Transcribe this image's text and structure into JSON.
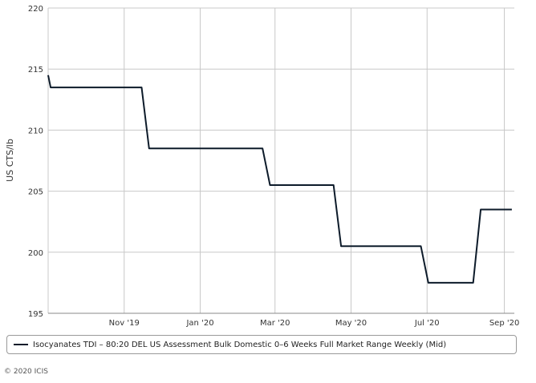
{
  "chart_data": {
    "type": "line",
    "ylabel": "US CTS/lb",
    "ylim": [
      195,
      220
    ],
    "yticks": [
      195,
      200,
      205,
      210,
      215,
      220
    ],
    "xlim": [
      "2019-09-01",
      "2020-09-09"
    ],
    "xticks": [
      {
        "date": "2019-11-01",
        "label": "Nov '19"
      },
      {
        "date": "2020-01-01",
        "label": "Jan '20"
      },
      {
        "date": "2020-03-01",
        "label": "Mar '20"
      },
      {
        "date": "2020-05-01",
        "label": "May '20"
      },
      {
        "date": "2020-07-01",
        "label": "Jul '20"
      },
      {
        "date": "2020-09-01",
        "label": "Sep '20"
      }
    ],
    "grid": true,
    "legend_position": "bottom",
    "series": [
      {
        "name": "Isocyanates TDI – 80:20 DEL US Assessment Bulk Domestic 0–6 Weeks Full Market Range Weekly (Mid)",
        "color": "#0d1b2a",
        "points": [
          [
            "2019-09-01",
            214.5
          ],
          [
            "2019-09-03",
            213.5
          ],
          [
            "2019-11-15",
            213.5
          ],
          [
            "2019-11-21",
            208.5
          ],
          [
            "2020-02-20",
            208.5
          ],
          [
            "2020-02-26",
            205.5
          ],
          [
            "2020-04-17",
            205.5
          ],
          [
            "2020-04-23",
            200.5
          ],
          [
            "2020-06-26",
            200.5
          ],
          [
            "2020-07-02",
            197.5
          ],
          [
            "2020-08-07",
            197.5
          ],
          [
            "2020-08-13",
            203.5
          ],
          [
            "2020-09-07",
            203.5
          ]
        ]
      }
    ]
  },
  "copyright": "© 2020 ICIS"
}
